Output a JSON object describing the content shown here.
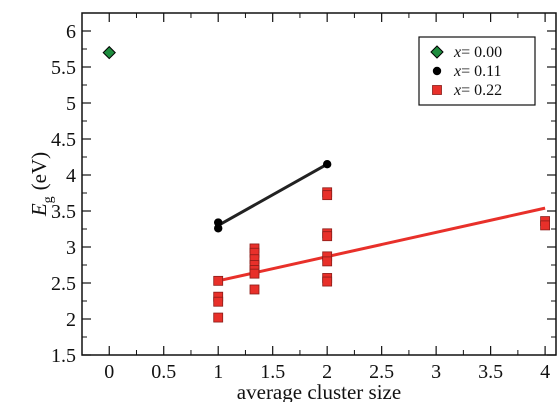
{
  "chart_data": {
    "type": "scatter",
    "xlabel": "average cluster size",
    "ylabel": {
      "symbol": "E",
      "subscript": "g",
      "unit": "(eV)"
    },
    "xlim": [
      -0.25,
      4.1
    ],
    "ylim": [
      1.5,
      6.25
    ],
    "xticks": [
      0,
      0.5,
      1,
      1.5,
      2,
      2.5,
      3,
      3.5,
      4
    ],
    "xtick_labels": [
      "0",
      "0.5",
      "1",
      "1.5",
      "2",
      "2.5",
      "3",
      "3.5",
      "4"
    ],
    "yticks": [
      1.5,
      2,
      2.5,
      3,
      3.5,
      4,
      4.5,
      5,
      5.5,
      6
    ],
    "ytick_labels": [
      "1.5",
      "2",
      "2.5",
      "3",
      "3.5",
      "4",
      "4.5",
      "5",
      "5.5",
      "6"
    ],
    "grid": false,
    "legend_position": "top-right",
    "series": [
      {
        "name": "x= 0.00",
        "legend_var": "x",
        "legend_value": "= 0.00",
        "marker": "diamond",
        "color": "#1e8c3e",
        "points": [
          [
            0,
            5.7
          ]
        ]
      },
      {
        "name": "x= 0.11",
        "legend_var": "x",
        "legend_value": "= 0.11",
        "marker": "circle",
        "color": "#000000",
        "points": [
          [
            1,
            3.34
          ],
          [
            1,
            3.26
          ],
          [
            2,
            4.15
          ]
        ],
        "fit_line": {
          "x": [
            1,
            2
          ],
          "y": [
            3.3,
            4.15
          ],
          "color": "#222222"
        }
      },
      {
        "name": "x= 0.22",
        "legend_var": "x",
        "legend_value": "= 0.22",
        "marker": "square",
        "color": "#e8302a",
        "points": [
          [
            1,
            2.53
          ],
          [
            1,
            2.31
          ],
          [
            1,
            2.24
          ],
          [
            1,
            2.02
          ],
          [
            1.333,
            2.98
          ],
          [
            1.333,
            2.92
          ],
          [
            1.333,
            2.83
          ],
          [
            1.333,
            2.75
          ],
          [
            1.333,
            2.68
          ],
          [
            1.333,
            2.63
          ],
          [
            1.333,
            2.41
          ],
          [
            2,
            3.76
          ],
          [
            2,
            3.72
          ],
          [
            2,
            3.19
          ],
          [
            2,
            3.15
          ],
          [
            2,
            2.87
          ],
          [
            2,
            2.8
          ],
          [
            2,
            2.57
          ],
          [
            2,
            2.52
          ],
          [
            4,
            3.36
          ],
          [
            4,
            3.3
          ]
        ],
        "fit_line": {
          "x": [
            1,
            4
          ],
          "y": [
            2.53,
            3.54
          ],
          "color": "#e8302a"
        }
      }
    ]
  }
}
